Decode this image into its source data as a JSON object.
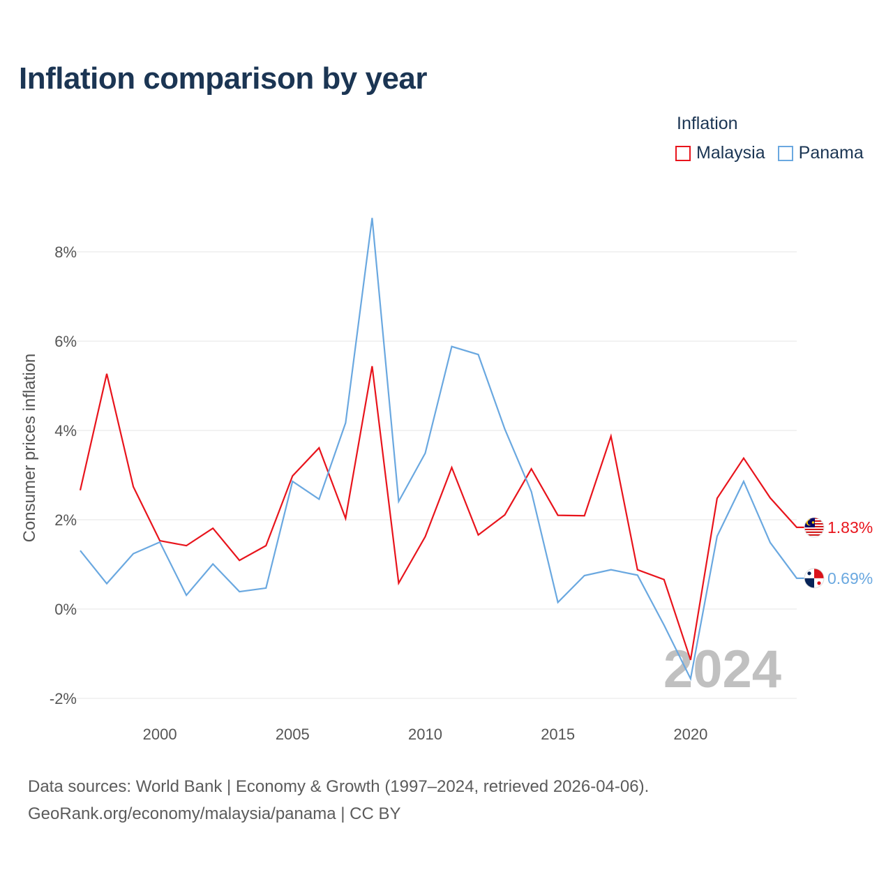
{
  "title": "Inflation comparison by year",
  "legend": {
    "title": "Inflation",
    "items": [
      {
        "name": "Malaysia",
        "color": "#e8141c"
      },
      {
        "name": "Panama",
        "color": "#6aa8e0"
      }
    ]
  },
  "source": {
    "line1": "Data sources: World Bank | Economy & Growth (1997–2024, retrieved 2026-04-06).",
    "line2": "GeoRank.org/economy/malaysia/panama | CC BY"
  },
  "chart_data": {
    "type": "line",
    "title": "Inflation comparison by year",
    "xlabel": "",
    "ylabel": "Consumer prices inflation",
    "x": [
      1997,
      1998,
      1999,
      2000,
      2001,
      2002,
      2003,
      2004,
      2005,
      2006,
      2007,
      2008,
      2009,
      2010,
      2011,
      2012,
      2013,
      2014,
      2015,
      2016,
      2017,
      2018,
      2019,
      2020,
      2021,
      2022,
      2023,
      2024
    ],
    "xlim": [
      1997,
      2024
    ],
    "ylim": [
      -2,
      9
    ],
    "x_ticks": [
      2000,
      2005,
      2010,
      2015,
      2020
    ],
    "y_ticks": [
      -2,
      0,
      2,
      4,
      6,
      8
    ],
    "y_tick_labels": [
      "-2%",
      "0%",
      "2%",
      "4%",
      "6%",
      "8%"
    ],
    "series": [
      {
        "name": "Malaysia",
        "color": "#e8141c",
        "values": [
          2.66,
          5.27,
          2.74,
          1.53,
          1.42,
          1.81,
          1.09,
          1.42,
          2.98,
          3.61,
          2.03,
          5.44,
          0.58,
          1.62,
          3.17,
          1.66,
          2.11,
          3.14,
          2.1,
          2.09,
          3.87,
          0.88,
          0.66,
          -1.14,
          2.48,
          3.38,
          2.49,
          1.83
        ],
        "end_label": "1.83%",
        "flag": "malaysia-flag"
      },
      {
        "name": "Panama",
        "color": "#6aa8e0",
        "values": [
          1.31,
          0.57,
          1.24,
          1.5,
          0.31,
          1.01,
          0.39,
          0.47,
          2.86,
          2.46,
          4.17,
          8.76,
          2.41,
          3.49,
          5.88,
          5.7,
          4.03,
          2.63,
          0.15,
          0.75,
          0.88,
          0.76,
          -0.36,
          -1.56,
          1.63,
          2.86,
          1.49,
          0.69
        ],
        "end_label": "0.69%",
        "flag": "panama-flag"
      }
    ],
    "year_watermark": "2024",
    "grid": true,
    "legend_position": "top-right"
  }
}
